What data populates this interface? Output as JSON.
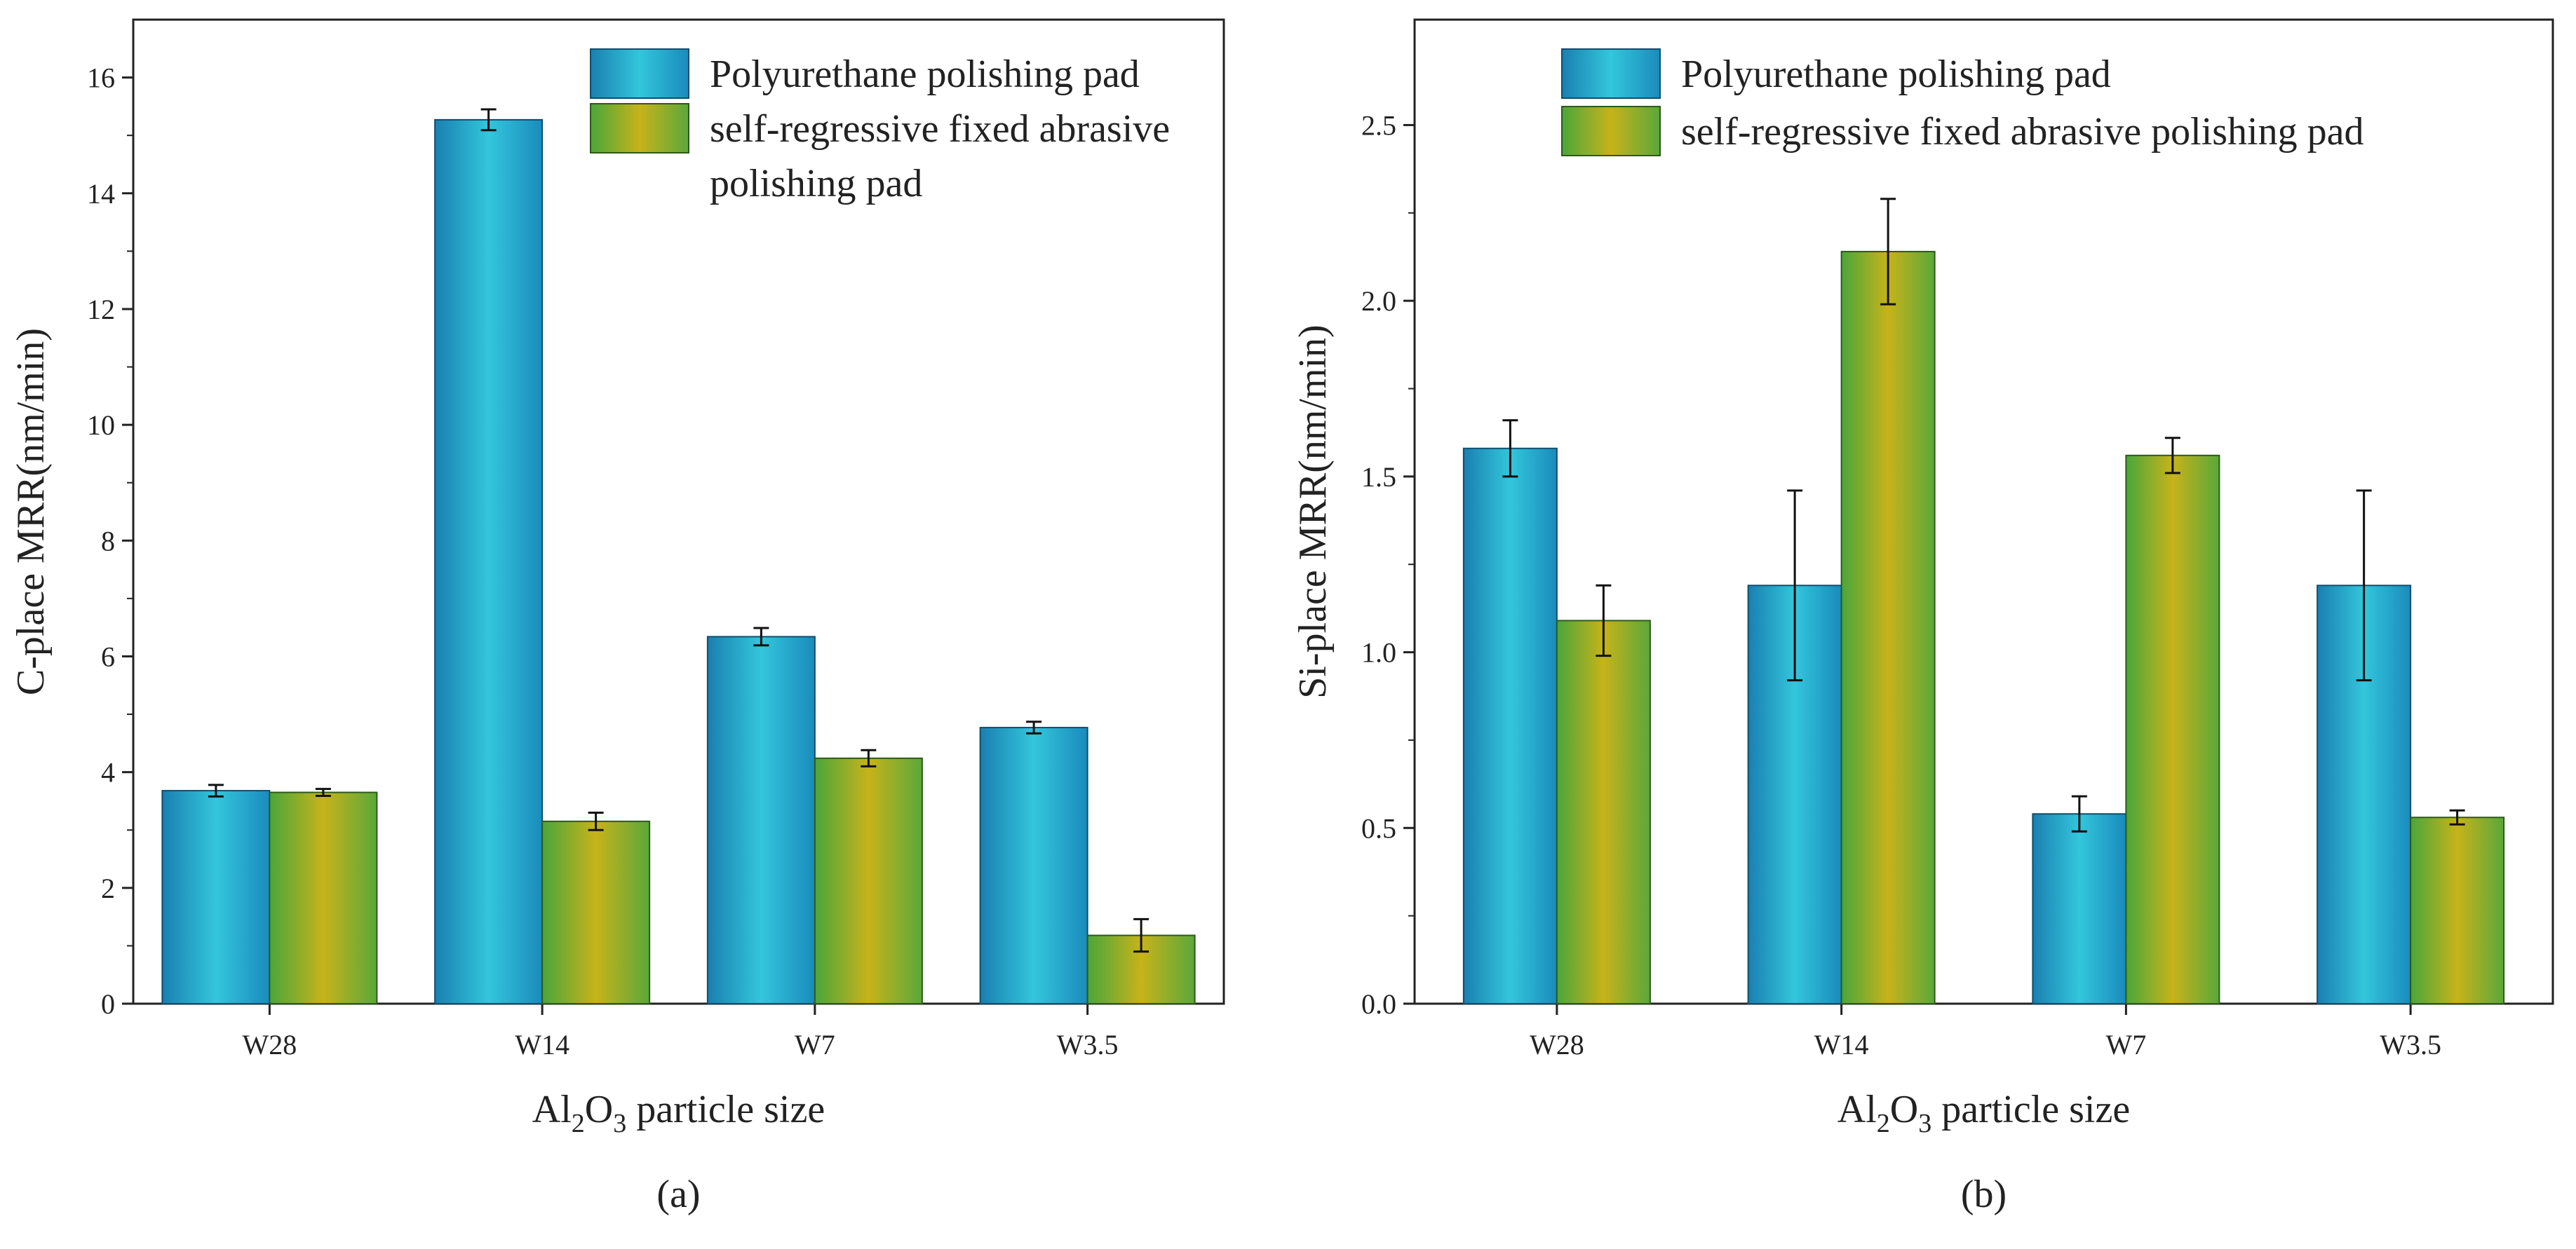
{
  "colors": {
    "polyurethane": [
      "#1a7fb0",
      "#33c6dc",
      "#1a8bbc"
    ],
    "fixed_abrasive": [
      "#4aa63a",
      "#c7b31a",
      "#5aa83a"
    ],
    "axis": "#222222"
  },
  "chart_data": [
    {
      "type": "bar",
      "caption": "(a)",
      "title": "",
      "ylabel": "C-place  MRR(nm/min)",
      "xlabel_parts": [
        "Al",
        "2",
        "O",
        "3",
        " particle size"
      ],
      "categories": [
        "W28",
        "W14",
        "W7",
        "W3.5"
      ],
      "ylim": [
        0,
        17
      ],
      "yticks": [
        0,
        2,
        4,
        6,
        8,
        10,
        12,
        14,
        16
      ],
      "ytick_labels": [
        "0",
        "2",
        "4",
        "6",
        "8",
        "10",
        "12",
        "14",
        "16"
      ],
      "legend_position": "top-right",
      "series": [
        {
          "name": "Polyurethane polishing pad",
          "legend_lines": [
            "Polyurethane polishing pad"
          ],
          "values": [
            3.68,
            15.27,
            6.34,
            4.77
          ],
          "errors": [
            0.1,
            0.18,
            0.15,
            0.1
          ]
        },
        {
          "name": "self-regressive fixed abrasive polishing pad",
          "legend_lines": [
            "self-regressive fixed abrasive",
            "polishing pad"
          ],
          "values": [
            3.65,
            3.15,
            4.24,
            1.18
          ],
          "errors": [
            0.06,
            0.15,
            0.14,
            0.28
          ]
        }
      ]
    },
    {
      "type": "bar",
      "caption": "(b)",
      "title": "",
      "ylabel": "Si-place  MRR(nm/min)",
      "xlabel_parts": [
        "Al",
        "2",
        "O",
        "3",
        " particle size"
      ],
      "categories": [
        "W28",
        "W14",
        "W7",
        "W3.5"
      ],
      "ylim": [
        0,
        2.8
      ],
      "yticks": [
        0,
        0.5,
        1.0,
        1.5,
        2.0,
        2.5
      ],
      "ytick_labels": [
        "0.0",
        "0.5",
        "1.0",
        "1.5",
        "2.0",
        "2.5"
      ],
      "legend_position": "top",
      "series": [
        {
          "name": "Polyurethane polishing pad",
          "legend_lines": [
            "Polyurethane polishing pad"
          ],
          "values": [
            1.58,
            1.19,
            0.54,
            1.19
          ],
          "errors": [
            0.08,
            0.27,
            0.05,
            0.27
          ]
        },
        {
          "name": "self-regressive fixed abrasive polishing pad",
          "legend_lines": [
            "self-regressive fixed abrasive polishing pad"
          ],
          "values": [
            1.09,
            2.14,
            1.56,
            0.53
          ],
          "errors": [
            0.1,
            0.15,
            0.05,
            0.02
          ]
        }
      ]
    }
  ]
}
